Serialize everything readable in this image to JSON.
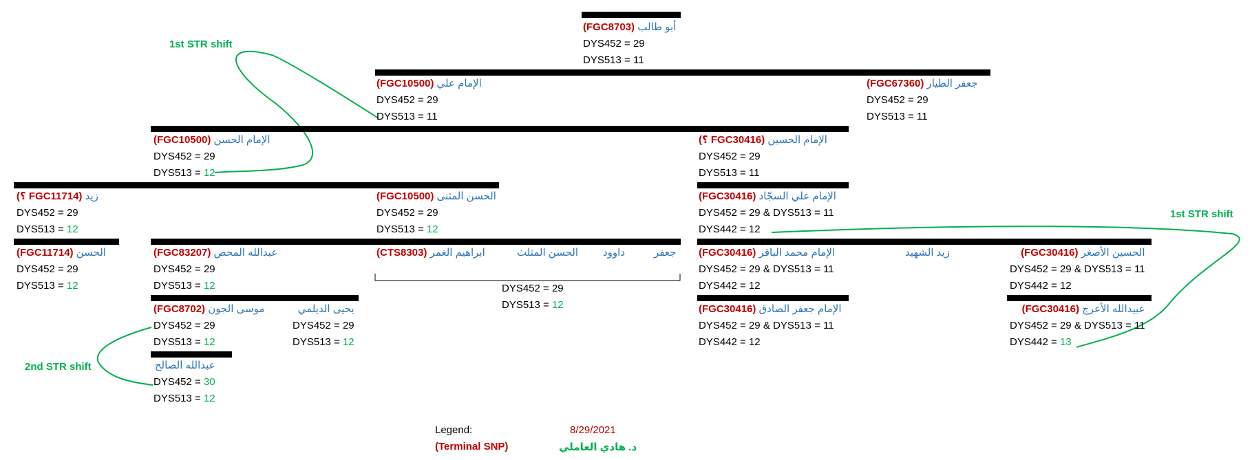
{
  "nodes": {
    "abu_talib": {
      "name": "أبو طالب",
      "snp": "FGC8703",
      "line1": "DYS452 = 29",
      "line2": "DYS513 = 11"
    },
    "ali": {
      "name": "الإمام علي",
      "snp": "FGC10500",
      "line1": "DYS452 = 29",
      "line2": "DYS513 = 11"
    },
    "jafar_tayyar": {
      "name": "جعفر الطيار",
      "snp": "FGC67360",
      "line1": "DYS452 = 29",
      "line2": "DYS513 = 11"
    },
    "hasan": {
      "name": "الإمام الحسن",
      "snp": "FGC10500",
      "line1": "DYS452 = 29",
      "line2_prefix": "DYS513 = ",
      "line2_value": "12"
    },
    "husayn": {
      "name": "الإمام الحسين",
      "snp": "FGC30416",
      "q": "؟",
      "line1": "DYS452 = 29",
      "line2": "DYS513 = 11"
    },
    "zayd": {
      "name": "زيد",
      "snp": "FGC11714",
      "q": "؟",
      "line1": "DYS452 = 29",
      "line2_prefix": "DYS513 = ",
      "line2_value": "12"
    },
    "hasan_muthanna": {
      "name": "الحسن المثنى",
      "snp": "FGC10500",
      "line1": "DYS452 = 29",
      "line2_prefix": "DYS513 = ",
      "line2_value": "12"
    },
    "sajjad": {
      "name": "الإمام علي السجّاد",
      "snp": "FGC30416",
      "line1": "DYS452 = 29 & DYS513 = 11",
      "line2": "DYS442 = 12"
    },
    "hasan_zayd": {
      "name": "الحسن",
      "snp": "FGC11714",
      "line1": "DYS452 = 29",
      "line2_prefix": "DYS513 = ",
      "line2_value": "12"
    },
    "abdullah_mahd": {
      "name": "عبدالله المحص",
      "snp": "FGC83207",
      "line1": "DYS452 = 29",
      "line2_prefix": "DYS513 = ",
      "line2_value": "12"
    },
    "ibrahim_ghamr": {
      "name": "ابراهيم الغمر",
      "snp": "CTS8303"
    },
    "hasan_muthallath": {
      "name": "الحسن المثلث"
    },
    "dawud": {
      "name": "داوود"
    },
    "jafar": {
      "name": "جعفر"
    },
    "group_values": {
      "line1": "DYS452 = 29",
      "line2_prefix": "DYS513 = ",
      "line2_value": "12"
    },
    "baqir": {
      "name": "الإمام محمد الباقر",
      "snp": "FGC30416",
      "line1": "DYS452 = 29 & DYS513 = 11",
      "line2": "DYS442 = 12"
    },
    "zayd_shahid": {
      "name": "زيد الشهيد"
    },
    "husayn_asghar": {
      "name": "الحسين الأصغر",
      "snp": "FGC30416",
      "line1": "DYS452 = 29 & DYS513 = 11",
      "line2": "DYS442 = 12"
    },
    "musa_jawn": {
      "name": "موسى الجون",
      "snp": "FGC8702",
      "line1": "DYS452 = 29",
      "line2_prefix": "DYS513 = ",
      "line2_value": "12"
    },
    "yahya_daylami": {
      "name": "يحيى الديلمي",
      "line1": "DYS452 = 29",
      "line2_prefix": "DYS513 = ",
      "line2_value": "12"
    },
    "sadiq": {
      "name": "الإمام جعفر الصادق",
      "snp": "FGC30416",
      "line1": "DYS452 = 29 & DYS513 = 11",
      "line2": "DYS442 = 12"
    },
    "ubaydullah_araj": {
      "name": "عبيدالله الأعرج",
      "snp": "FGC30416",
      "line1": "DYS452 = 29 & DYS513 = 11",
      "line2_prefix": "DYS442 = ",
      "line2_value": "13"
    },
    "abdullah_salih": {
      "name": "عبدالله الصالح",
      "line1_prefix": "DYS452 = ",
      "line1_value": "30",
      "line2_prefix": "DYS513 = ",
      "line2_value": "12"
    }
  },
  "annotations": {
    "shift_1_left": "1st STR shift",
    "shift_1_right": "1st STR shift",
    "shift_2": "2nd STR shift"
  },
  "legend": {
    "label": "Legend:",
    "date": "8/29/2021",
    "terminal_snp": "Terminal SNP",
    "author": "د. هادي العاملي"
  },
  "colors": {
    "name": "#2e74b5",
    "snp": "#c00000",
    "shift": "#00b050",
    "bar": "#000000"
  }
}
